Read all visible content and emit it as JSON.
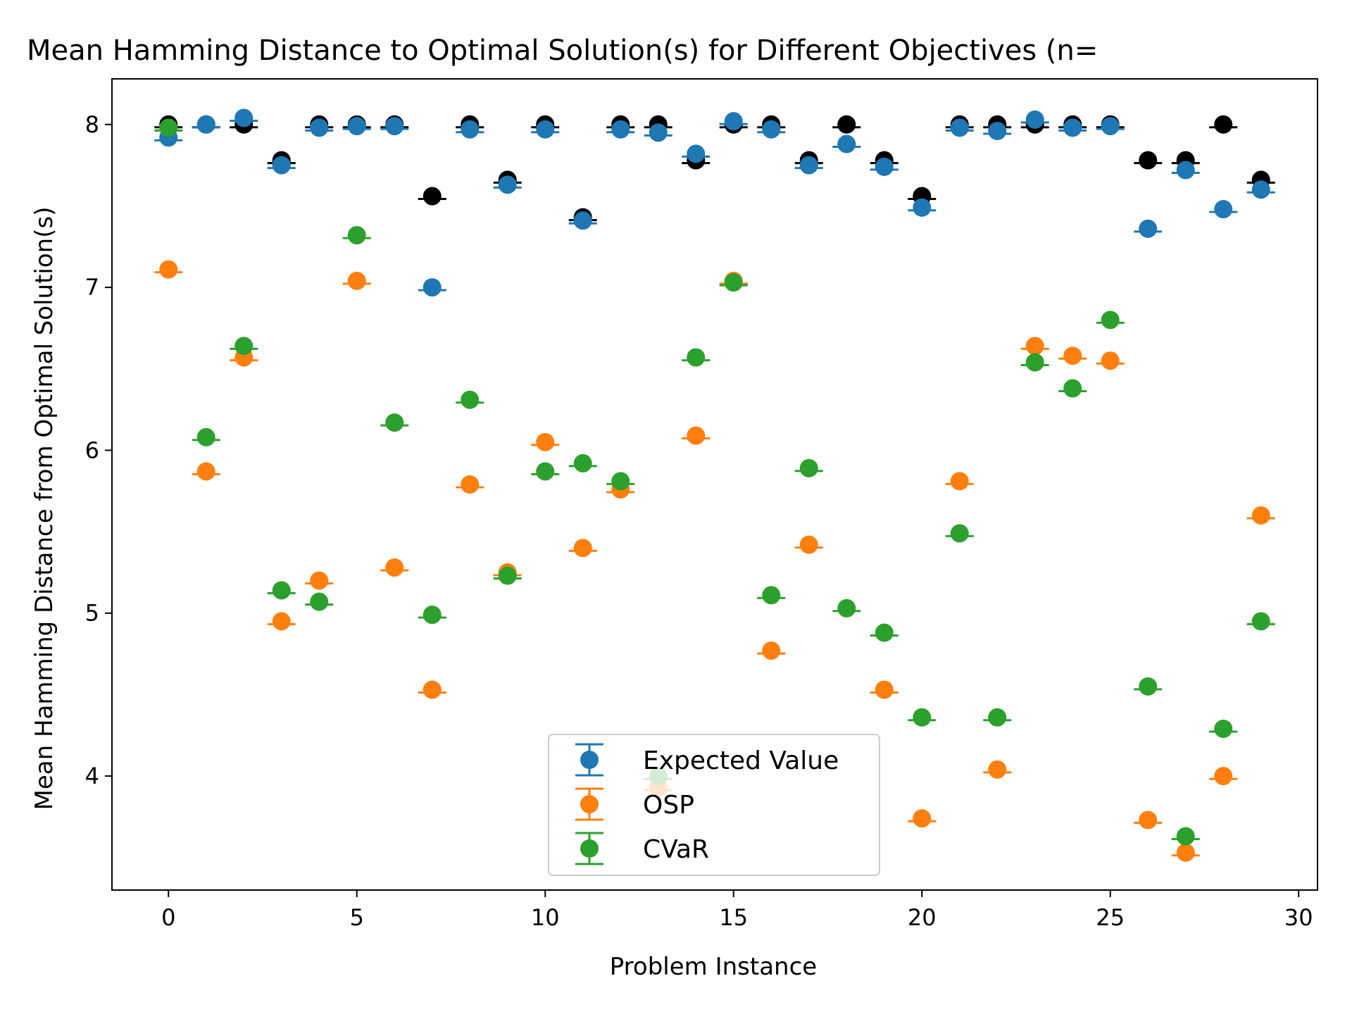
{
  "chart_data": {
    "type": "scatter",
    "title": "Mean Hamming Distance to Optimal Solution(s) for Different Objectives (n=",
    "xlabel": "Problem Instance",
    "ylabel": "Mean Hamming Distance from Optimal Solution(s)",
    "xlim": [
      -1.5,
      30.5
    ],
    "ylim": [
      3.3,
      8.28
    ],
    "xticks": [
      0,
      5,
      10,
      15,
      20,
      25,
      30
    ],
    "yticks": [
      4,
      5,
      6,
      7,
      8
    ],
    "x": [
      0,
      1,
      2,
      3,
      4,
      5,
      6,
      7,
      8,
      9,
      10,
      11,
      12,
      13,
      14,
      15,
      16,
      17,
      18,
      19,
      20,
      21,
      22,
      23,
      24,
      25,
      26,
      27,
      28,
      29
    ],
    "legend_position": "lower center",
    "series": [
      {
        "color": "#000000",
        "values": [
          8.0,
          8.0,
          8.0,
          7.78,
          8.0,
          8.0,
          8.0,
          7.56,
          8.0,
          7.66,
          8.0,
          7.43,
          8.0,
          8.0,
          7.78,
          8.0,
          8.0,
          7.78,
          8.0,
          7.78,
          7.56,
          8.0,
          8.0,
          8.0,
          8.0,
          8.0,
          7.78,
          7.78,
          8.0,
          7.66
        ]
      },
      {
        "name": "Expected Value",
        "color": "#1f77b4",
        "values": [
          7.92,
          8.0,
          8.04,
          7.75,
          7.98,
          7.99,
          7.99,
          7.0,
          7.97,
          7.63,
          7.97,
          7.41,
          7.97,
          7.95,
          7.82,
          8.02,
          7.97,
          7.75,
          7.88,
          7.74,
          7.49,
          7.98,
          7.96,
          8.03,
          7.98,
          7.99,
          7.36,
          7.72,
          7.48,
          7.6
        ]
      },
      {
        "name": "OSP",
        "color": "#ff7f0e",
        "values": [
          7.11,
          5.87,
          6.57,
          4.95,
          5.2,
          7.04,
          5.28,
          4.53,
          5.79,
          5.25,
          6.05,
          5.4,
          5.76,
          3.93,
          6.09,
          7.04,
          4.77,
          5.42,
          null,
          4.53,
          3.74,
          5.81,
          4.04,
          6.64,
          6.58,
          6.55,
          3.73,
          3.53,
          4.0,
          5.6
        ]
      },
      {
        "name": "CVaR",
        "color": "#2ca02c",
        "values": [
          7.98,
          6.08,
          6.64,
          5.14,
          5.07,
          7.32,
          6.17,
          4.99,
          6.31,
          5.23,
          5.87,
          5.92,
          5.81,
          4.0,
          6.57,
          7.03,
          5.11,
          5.89,
          5.03,
          4.88,
          4.36,
          5.49,
          4.36,
          6.54,
          6.38,
          6.8,
          4.55,
          3.63,
          4.29,
          4.95
        ]
      }
    ]
  }
}
